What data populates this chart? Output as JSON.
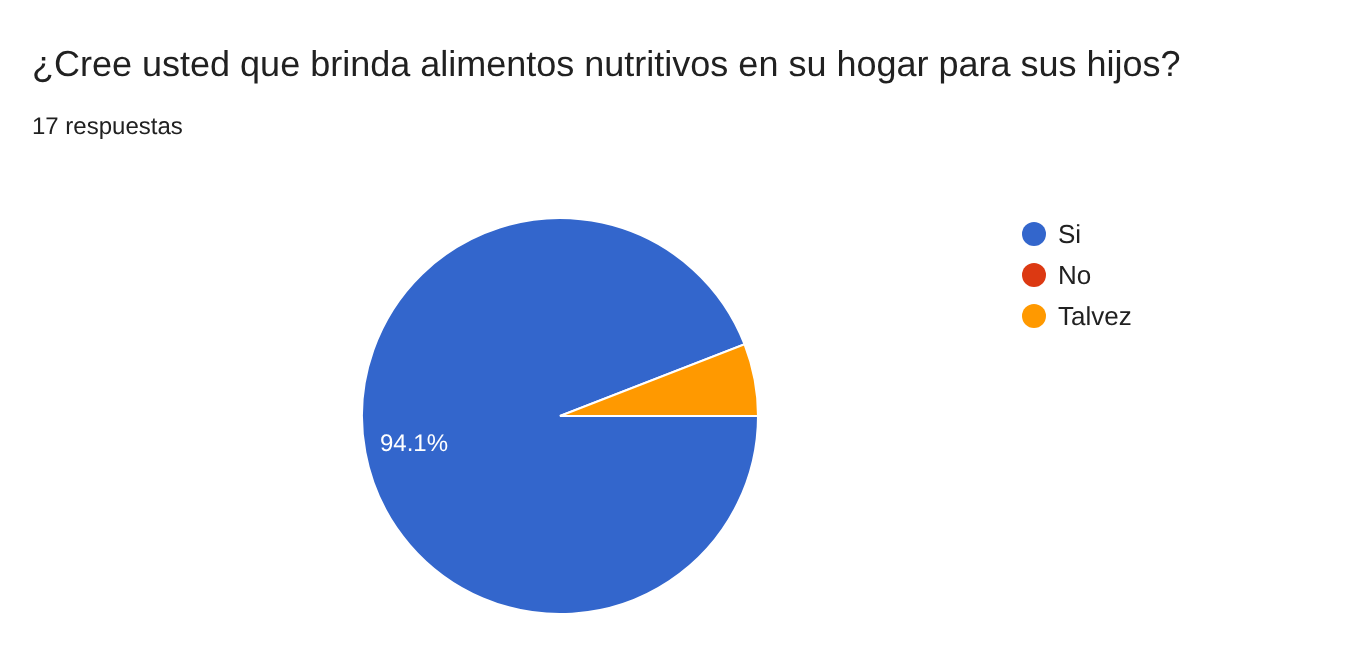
{
  "chart_data": {
    "type": "pie",
    "title": "¿Cree usted que brinda alimentos nutritivos en su hogar para sus hijos?",
    "subtitle": "17 respuestas",
    "categories": [
      "Si",
      "No",
      "Talvez"
    ],
    "values": [
      94.1,
      0,
      5.9
    ],
    "colors": [
      "#3366cc",
      "#dc3912",
      "#ff9900"
    ],
    "value_labels": [
      "94.1%",
      null,
      null
    ],
    "legend": "right"
  }
}
